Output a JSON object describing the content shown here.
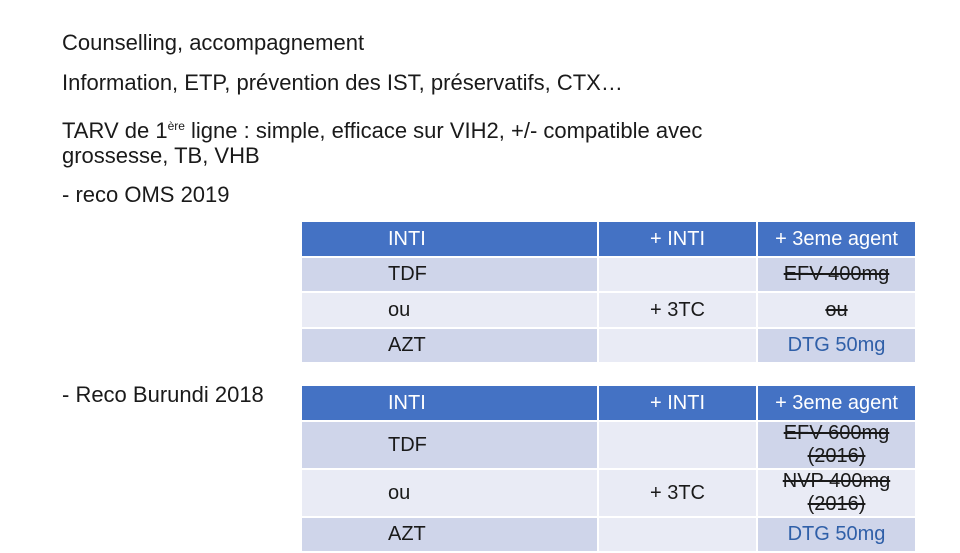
{
  "lines": {
    "l1": "Counselling, accompagnement",
    "l2": "Information, ETP, prévention des IST, préservatifs, CTX…",
    "l3a": "TARV de 1",
    "l3sup": "ère",
    "l3b": " ligne : simple, efficace sur VIH2, +/- compatible avec",
    "l4": "grossesse, TB, VHB",
    "l5": "- reco OMS 2019",
    "l6": "- Reco Burundi 2018"
  },
  "table_oms": {
    "header": [
      "INTI",
      "+ INTI",
      "+ 3eme agent"
    ],
    "rows": [
      [
        "TDF",
        "",
        "EFV 400mg"
      ],
      [
        "ou",
        "+ 3TC",
        "ou"
      ],
      [
        "AZT",
        "",
        "DTG 50mg"
      ]
    ]
  },
  "table_burundi": {
    "header": [
      "INTI",
      "+ INTI",
      "+ 3eme agent"
    ],
    "rows": [
      [
        "TDF",
        "",
        "EFV 600mg  (2016)"
      ],
      [
        "ou",
        "+ 3TC",
        "NVP 400mg (2016)"
      ],
      [
        "AZT",
        "",
        "DTG 50mg"
      ]
    ]
  },
  "colors": {
    "header": "#4472c4",
    "row_dark": "#cfd5ea",
    "row_light": "#e9ebf5",
    "accent_text": "#2f5fa8"
  }
}
